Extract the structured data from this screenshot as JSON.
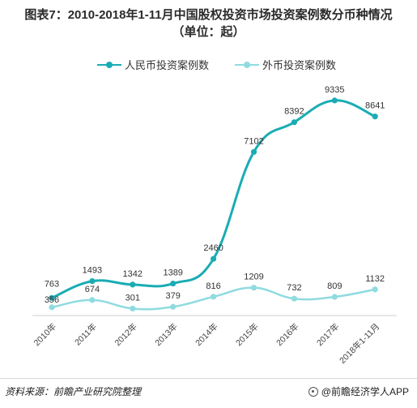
{
  "header": {
    "title_line1": "图表7：2010-2018年1-11月中国股权投资市场投资案例数分币种情况",
    "title_line2": "（单位：起）"
  },
  "legend": {
    "items": [
      {
        "label": "人民币投资案例数",
        "color": "#1aacb4"
      },
      {
        "label": "外币投资案例数",
        "color": "#8fdbe0"
      }
    ]
  },
  "footer": {
    "source": "资料来源：前瞻产业研究院整理",
    "brand": "@前瞻经济学人APP"
  },
  "chart_data": {
    "type": "line",
    "categories": [
      "2010年",
      "2011年",
      "2012年",
      "2013年",
      "2014年",
      "2015年",
      "2016年",
      "2017年",
      "2018年1-11月"
    ],
    "series": [
      {
        "name": "人民币投资案例数",
        "color": "#1aacb4",
        "values": [
          763,
          1493,
          1342,
          1389,
          2460,
          7102,
          8392,
          9335,
          8641
        ]
      },
      {
        "name": "外币投资案例数",
        "color": "#8fdbe0",
        "values": [
          356,
          674,
          301,
          379,
          816,
          1209,
          732,
          809,
          1132
        ]
      }
    ],
    "ylim": [
      0,
      10000
    ],
    "grid": false,
    "legend_position": "top-center"
  }
}
